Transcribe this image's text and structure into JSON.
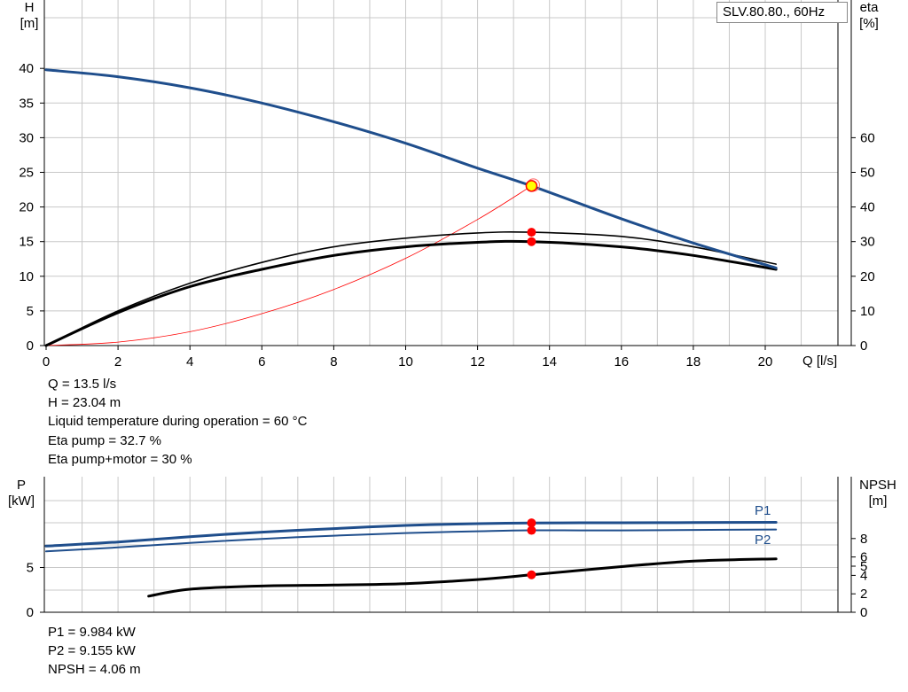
{
  "chart_data": [
    {
      "type": "line",
      "title": "SLV.80.80., 60Hz",
      "xlabel": "Q [l/s]",
      "ylabel_left": {
        "name": "H",
        "unit": "[m]"
      },
      "ylabel_right": {
        "name": "eta",
        "unit": "[%]"
      },
      "xlim": [
        0,
        21.9
      ],
      "ylim_left": [
        0,
        45
      ],
      "ylim_right": [
        0,
        85
      ],
      "x_ticks": [
        0,
        2,
        4,
        6,
        8,
        10,
        12,
        14,
        16,
        18,
        20
      ],
      "y_ticks_left": [
        0,
        5,
        10,
        15,
        20,
        25,
        30,
        35,
        40
      ],
      "y_ticks_right": [
        0,
        10,
        20,
        30,
        40,
        50,
        60
      ],
      "grid": true,
      "series": [
        {
          "name": "H",
          "axis": "left",
          "color": "#1f4e8c",
          "x": [
            0,
            2,
            4,
            6,
            8,
            10,
            12,
            13.5,
            16,
            18,
            20.3
          ],
          "y": [
            39.8,
            38.8,
            37.2,
            35.0,
            32.3,
            29.2,
            25.6,
            23.04,
            18.3,
            14.8,
            11.2
          ]
        },
        {
          "name": "Eta pump",
          "axis": "right",
          "color": "#000000",
          "x": [
            0,
            2,
            4,
            6,
            8,
            10,
            12,
            13.5,
            16,
            18,
            20.3
          ],
          "y": [
            0,
            10.0,
            18.0,
            24.0,
            28.5,
            31.0,
            32.5,
            32.7,
            31.5,
            28.5,
            23.5
          ]
        },
        {
          "name": "Eta pump+motor",
          "axis": "right",
          "color": "#000000",
          "x": [
            0,
            2,
            4,
            6,
            8,
            10,
            12,
            13.5,
            16,
            18,
            20.3
          ],
          "y": [
            0,
            9.5,
            17.0,
            22.0,
            26.0,
            28.5,
            29.8,
            30.0,
            28.5,
            26.0,
            22.0
          ]
        },
        {
          "name": "System curve",
          "axis": "left",
          "color": "#ff0000",
          "x": [
            0,
            2,
            4,
            6,
            8,
            10,
            12,
            13.5
          ],
          "y": [
            0,
            0.5,
            2.0,
            4.6,
            8.1,
            12.6,
            18.2,
            23.04
          ]
        }
      ],
      "operating_point": {
        "Q": 13.5,
        "H": 23.04
      },
      "eta_points": [
        32.7,
        30.0
      ]
    },
    {
      "type": "line",
      "xlabel": "Q [l/s]",
      "ylabel_left": {
        "name": "P",
        "unit": "[kW]"
      },
      "ylabel_right": {
        "name": "NPSH",
        "unit": "[m]"
      },
      "xlim": [
        0,
        21.9
      ],
      "ylim_left": [
        0,
        13.5
      ],
      "ylim_right": [
        0,
        13.4
      ],
      "y_ticks_left": [
        0,
        5
      ],
      "y_ticks_right": [
        0,
        2,
        4,
        5,
        6,
        8
      ],
      "grid": true,
      "series": [
        {
          "name": "P1",
          "axis": "left",
          "color": "#1f4e8c",
          "x": [
            0,
            2,
            4,
            6,
            8,
            10,
            12,
            13.5,
            16,
            18,
            20.3
          ],
          "y": [
            7.4,
            7.85,
            8.45,
            8.95,
            9.35,
            9.7,
            9.9,
            9.984,
            10.0,
            10.02,
            10.05
          ]
        },
        {
          "name": "P2",
          "axis": "left",
          "color": "#1f4e8c",
          "x": [
            0,
            2,
            4,
            6,
            8,
            10,
            12,
            13.5,
            16,
            18,
            20.3
          ],
          "y": [
            6.8,
            7.25,
            7.75,
            8.2,
            8.55,
            8.85,
            9.05,
            9.155,
            9.15,
            9.2,
            9.25
          ]
        },
        {
          "name": "NPSH",
          "axis": "right",
          "color": "#000000",
          "x": [
            2.85,
            4,
            6,
            8,
            10,
            12,
            13.5,
            16,
            18,
            20.3
          ],
          "y": [
            1.75,
            2.5,
            2.85,
            2.95,
            3.1,
            3.55,
            4.06,
            4.95,
            5.55,
            5.8
          ]
        }
      ],
      "operating_points": {
        "P1": 9.984,
        "P2": 9.155,
        "NPSH": 4.06
      }
    }
  ],
  "info_top": [
    "Q = 13.5 l/s",
    "H = 23.04 m",
    "Liquid temperature during operation = 60 °C",
    "Eta pump = 32.7 %",
    "Eta pump+motor = 30 %"
  ],
  "info_bottom": [
    "P1 = 9.984 kW",
    "P2 = 9.155 kW",
    "NPSH = 4.06 m"
  ],
  "colors": {
    "curve_blue": "#1f4e8c",
    "grid": "#c8c8c8",
    "marker": "#ff0000",
    "op_point_fill": "#ffff00"
  }
}
